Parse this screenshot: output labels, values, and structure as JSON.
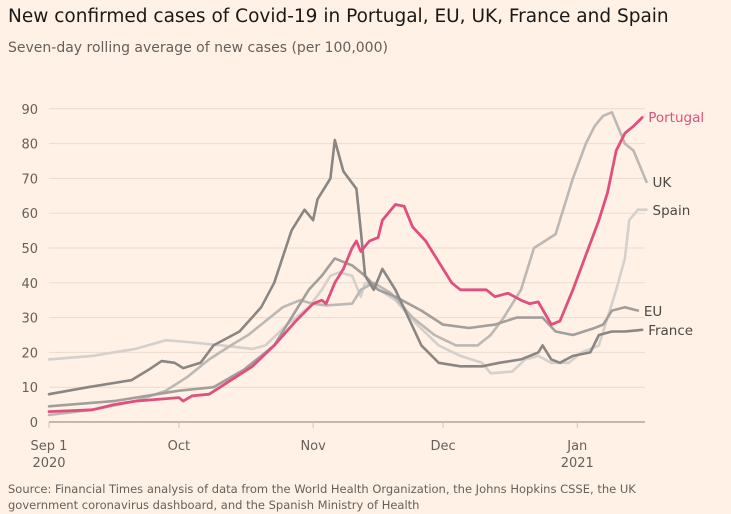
{
  "chart_data": {
    "type": "line",
    "title": "New confirmed cases of Covid-19 in Portugal, EU, UK, France and Spain",
    "subtitle": "Seven-day rolling average of new cases (per 100,000)",
    "source": "Source: Financial Times analysis of data from the World Health Organization, the Johns Hopkins CSSE, the UK government coronavirus dashboard, and the Spanish Ministry of Health",
    "ylim": [
      0,
      90
    ],
    "yticks": [
      0,
      10,
      20,
      30,
      40,
      50,
      60,
      70,
      80,
      90
    ],
    "xlim": [
      "2020-09-01",
      "2021-01-17"
    ],
    "xticks": [
      {
        "date": "2020-09-01",
        "label": "Sep 1",
        "sub": "2020"
      },
      {
        "date": "2020-10-01",
        "label": "Oct",
        "sub": ""
      },
      {
        "date": "2020-11-01",
        "label": "Nov",
        "sub": ""
      },
      {
        "date": "2020-12-01",
        "label": "Dec",
        "sub": ""
      },
      {
        "date": "2021-01-01",
        "label": "Jan",
        "sub": "2021"
      }
    ],
    "grid": true,
    "legend": "direct labels at line ends (right)",
    "series": [
      {
        "name": "Spain",
        "color": "#d3d0cd",
        "points": [
          [
            "2020-09-01",
            18
          ],
          [
            "2020-09-11",
            19
          ],
          [
            "2020-09-21",
            21
          ],
          [
            "2020-09-28",
            23.5
          ],
          [
            "2020-10-03",
            23
          ],
          [
            "2020-10-11",
            22
          ],
          [
            "2020-10-18",
            21
          ],
          [
            "2020-10-21",
            22
          ],
          [
            "2020-10-26",
            28
          ],
          [
            "2020-10-31",
            33
          ],
          [
            "2020-11-03",
            38
          ],
          [
            "2020-11-05",
            42
          ],
          [
            "2020-11-07",
            43
          ],
          [
            "2020-11-10",
            42
          ],
          [
            "2020-11-12",
            36
          ],
          [
            "2020-11-13",
            40
          ],
          [
            "2020-11-15",
            39
          ],
          [
            "2020-11-20",
            35
          ],
          [
            "2020-11-25",
            28
          ],
          [
            "2020-11-30",
            22
          ],
          [
            "2020-12-05",
            19
          ],
          [
            "2020-12-10",
            17
          ],
          [
            "2020-12-12",
            14
          ],
          [
            "2020-12-17",
            14.5
          ],
          [
            "2020-12-20",
            18
          ],
          [
            "2020-12-23",
            19
          ],
          [
            "2020-12-26",
            17
          ],
          [
            "2020-12-30",
            17
          ],
          [
            "2021-01-02",
            20
          ],
          [
            "2021-01-06",
            22
          ],
          [
            "2021-01-08",
            30
          ],
          [
            "2021-01-10",
            38
          ],
          [
            "2021-01-12",
            47
          ],
          [
            "2021-01-13",
            58
          ],
          [
            "2021-01-15",
            61
          ],
          [
            "2021-01-17",
            61
          ]
        ]
      },
      {
        "name": "UK",
        "color": "#bcb8b5",
        "points": [
          [
            "2020-09-01",
            2
          ],
          [
            "2020-09-11",
            3.5
          ],
          [
            "2020-09-21",
            6
          ],
          [
            "2020-09-28",
            9
          ],
          [
            "2020-10-03",
            13
          ],
          [
            "2020-10-08",
            18
          ],
          [
            "2020-10-13",
            22
          ],
          [
            "2020-10-17",
            25
          ],
          [
            "2020-10-21",
            29
          ],
          [
            "2020-10-25",
            33
          ],
          [
            "2020-10-29",
            35
          ],
          [
            "2020-11-01",
            34
          ],
          [
            "2020-11-04",
            33.5
          ],
          [
            "2020-11-10",
            34
          ],
          [
            "2020-11-12",
            38
          ],
          [
            "2020-11-15",
            40
          ],
          [
            "2020-11-19",
            37
          ],
          [
            "2020-11-24",
            30
          ],
          [
            "2020-11-29",
            25
          ],
          [
            "2020-12-04",
            22
          ],
          [
            "2020-12-09",
            22
          ],
          [
            "2020-12-12",
            25
          ],
          [
            "2020-12-15",
            30
          ],
          [
            "2020-12-19",
            38
          ],
          [
            "2020-12-22",
            50
          ],
          [
            "2020-12-27",
            54
          ],
          [
            "2020-12-31",
            70
          ],
          [
            "2021-01-03",
            80
          ],
          [
            "2021-01-05",
            85
          ],
          [
            "2021-01-07",
            88
          ],
          [
            "2021-01-09",
            89
          ],
          [
            "2021-01-12",
            80
          ],
          [
            "2021-01-14",
            78
          ],
          [
            "2021-01-17",
            69
          ]
        ]
      },
      {
        "name": "EU",
        "color": "#a29e9b",
        "points": [
          [
            "2020-09-01",
            4.5
          ],
          [
            "2020-09-16",
            6
          ],
          [
            "2020-10-01",
            9
          ],
          [
            "2020-10-09",
            10
          ],
          [
            "2020-10-16",
            15
          ],
          [
            "2020-10-23",
            22
          ],
          [
            "2020-10-27",
            30
          ],
          [
            "2020-10-31",
            38
          ],
          [
            "2020-11-03",
            42
          ],
          [
            "2020-11-06",
            47
          ],
          [
            "2020-11-10",
            45
          ],
          [
            "2020-11-13",
            42
          ],
          [
            "2020-11-16",
            38
          ],
          [
            "2020-11-20",
            36
          ],
          [
            "2020-11-26",
            32
          ],
          [
            "2020-12-01",
            28
          ],
          [
            "2020-12-07",
            27
          ],
          [
            "2020-12-13",
            28
          ],
          [
            "2020-12-18",
            30
          ],
          [
            "2020-12-24",
            30
          ],
          [
            "2020-12-27",
            26
          ],
          [
            "2020-12-31",
            25
          ],
          [
            "2021-01-05",
            27
          ],
          [
            "2021-01-07",
            28
          ],
          [
            "2021-01-09",
            32
          ],
          [
            "2021-01-12",
            33
          ],
          [
            "2021-01-15",
            32
          ]
        ]
      },
      {
        "name": "France",
        "color": "#8a8683",
        "points": [
          [
            "2020-09-01",
            8
          ],
          [
            "2020-09-10",
            10
          ],
          [
            "2020-09-20",
            12
          ],
          [
            "2020-09-24",
            15
          ],
          [
            "2020-09-27",
            17.5
          ],
          [
            "2020-09-30",
            17
          ],
          [
            "2020-10-02",
            15.5
          ],
          [
            "2020-10-06",
            17
          ],
          [
            "2020-10-09",
            22
          ],
          [
            "2020-10-15",
            26
          ],
          [
            "2020-10-20",
            33
          ],
          [
            "2020-10-23",
            40
          ],
          [
            "2020-10-27",
            55
          ],
          [
            "2020-10-30",
            61
          ],
          [
            "2020-11-01",
            58
          ],
          [
            "2020-11-02",
            64
          ],
          [
            "2020-11-05",
            70
          ],
          [
            "2020-11-06",
            81
          ],
          [
            "2020-11-08",
            72
          ],
          [
            "2020-11-11",
            67
          ],
          [
            "2020-11-12",
            55
          ],
          [
            "2020-11-13",
            42
          ],
          [
            "2020-11-15",
            38
          ],
          [
            "2020-11-17",
            44
          ],
          [
            "2020-11-20",
            38
          ],
          [
            "2020-11-23",
            30
          ],
          [
            "2020-11-26",
            22
          ],
          [
            "2020-11-30",
            17
          ],
          [
            "2020-12-05",
            16
          ],
          [
            "2020-12-10",
            16
          ],
          [
            "2020-12-14",
            17
          ],
          [
            "2020-12-19",
            18
          ],
          [
            "2020-12-23",
            20
          ],
          [
            "2020-12-24",
            22
          ],
          [
            "2020-12-26",
            18
          ],
          [
            "2020-12-28",
            17
          ],
          [
            "2020-12-31",
            19
          ],
          [
            "2021-01-04",
            20
          ],
          [
            "2021-01-06",
            25
          ],
          [
            "2021-01-09",
            26
          ],
          [
            "2021-01-12",
            26
          ],
          [
            "2021-01-16",
            26.5
          ]
        ]
      },
      {
        "name": "Portugal",
        "color": "#e0507f",
        "points": [
          [
            "2020-09-01",
            3
          ],
          [
            "2020-09-11",
            3.5
          ],
          [
            "2020-09-16",
            5
          ],
          [
            "2020-09-21",
            6
          ],
          [
            "2020-09-26",
            6.5
          ],
          [
            "2020-10-01",
            7
          ],
          [
            "2020-10-02",
            6
          ],
          [
            "2020-10-04",
            7.5
          ],
          [
            "2020-10-08",
            8
          ],
          [
            "2020-10-13",
            12
          ],
          [
            "2020-10-18",
            16
          ],
          [
            "2020-10-23",
            22
          ],
          [
            "2020-10-28",
            29
          ],
          [
            "2020-11-01",
            34
          ],
          [
            "2020-11-03",
            35
          ],
          [
            "2020-11-04",
            34
          ],
          [
            "2020-11-06",
            40
          ],
          [
            "2020-11-08",
            44
          ],
          [
            "2020-11-10",
            50
          ],
          [
            "2020-11-11",
            52
          ],
          [
            "2020-11-12",
            49
          ],
          [
            "2020-11-14",
            52
          ],
          [
            "2020-11-16",
            53
          ],
          [
            "2020-11-17",
            58
          ],
          [
            "2020-11-20",
            62.5
          ],
          [
            "2020-11-22",
            62
          ],
          [
            "2020-11-24",
            56
          ],
          [
            "2020-11-27",
            52
          ],
          [
            "2020-11-30",
            46
          ],
          [
            "2020-12-03",
            40
          ],
          [
            "2020-12-05",
            38
          ],
          [
            "2020-12-08",
            38
          ],
          [
            "2020-12-11",
            38
          ],
          [
            "2020-12-13",
            36
          ],
          [
            "2020-12-16",
            37
          ],
          [
            "2020-12-19",
            35
          ],
          [
            "2020-12-21",
            34
          ],
          [
            "2020-12-23",
            34.5
          ],
          [
            "2020-12-26",
            28
          ],
          [
            "2020-12-28",
            29
          ],
          [
            "2020-12-31",
            38
          ],
          [
            "2021-01-03",
            48
          ],
          [
            "2021-01-06",
            58
          ],
          [
            "2021-01-08",
            66
          ],
          [
            "2021-01-10",
            78
          ],
          [
            "2021-01-12",
            83
          ],
          [
            "2021-01-14",
            85
          ],
          [
            "2021-01-16",
            87.5
          ]
        ]
      }
    ]
  }
}
